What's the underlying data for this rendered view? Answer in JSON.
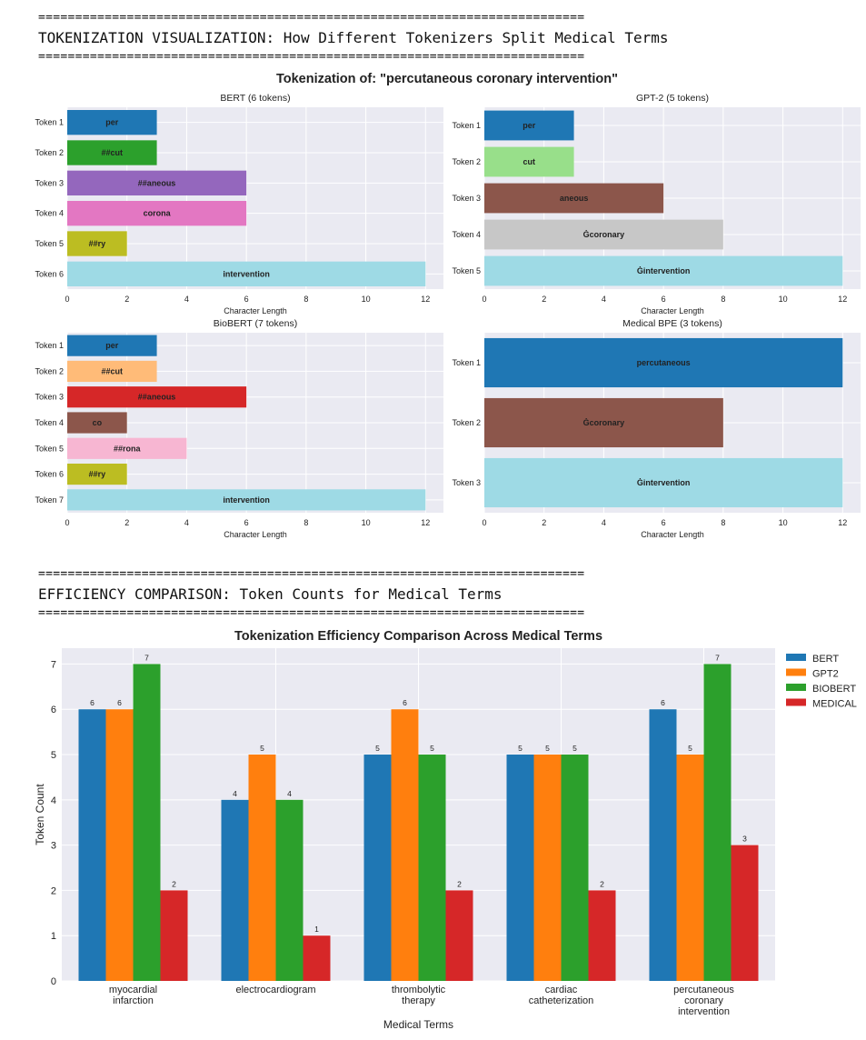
{
  "header1": {
    "sep_top": "==========================================================================",
    "title": "TOKENIZATION VISUALIZATION: How Different Tokenizers Split Medical Terms",
    "sep_bottom": "=========================================================================="
  },
  "header2": {
    "sep_top": "==========================================================================",
    "title": "EFFICIENCY COMPARISON: Token Counts for Medical Terms",
    "sep_bottom": "=========================================================================="
  },
  "figure1": {
    "suptitle": "Tokenization of: \"percutaneous coronary intervention\""
  },
  "chart_data": [
    {
      "type": "bar",
      "orientation": "horizontal",
      "title": "BERT (6 tokens)",
      "xlabel": "Character Length",
      "xlim": [
        0,
        12.6
      ],
      "xticks": [
        0,
        2,
        4,
        6,
        8,
        10,
        12
      ],
      "categories": [
        "Token 1",
        "Token 2",
        "Token 3",
        "Token 4",
        "Token 5",
        "Token 6"
      ],
      "labels": [
        "per",
        "##cut",
        "##aneous",
        "corona",
        "##ry",
        "intervention"
      ],
      "values": [
        3,
        3,
        6,
        6,
        2,
        12
      ],
      "colors": [
        "#1f77b4",
        "#2ca02c",
        "#9467bd",
        "#e377c2",
        "#bcbd22",
        "#9edae5"
      ]
    },
    {
      "type": "bar",
      "orientation": "horizontal",
      "title": "GPT-2 (5 tokens)",
      "xlabel": "Character Length",
      "xlim": [
        0,
        12.6
      ],
      "xticks": [
        0,
        2,
        4,
        6,
        8,
        10,
        12
      ],
      "categories": [
        "Token 1",
        "Token 2",
        "Token 3",
        "Token 4",
        "Token 5"
      ],
      "labels": [
        "per",
        "cut",
        "aneous",
        "Ġcoronary",
        "Ġintervention"
      ],
      "values": [
        3,
        3,
        6,
        8,
        12
      ],
      "colors": [
        "#1f77b4",
        "#98df8a",
        "#8c564b",
        "#c7c7c7",
        "#9edae5"
      ]
    },
    {
      "type": "bar",
      "orientation": "horizontal",
      "title": "BioBERT (7 tokens)",
      "xlabel": "Character Length",
      "xlim": [
        0,
        12.6
      ],
      "xticks": [
        0,
        2,
        4,
        6,
        8,
        10,
        12
      ],
      "categories": [
        "Token 1",
        "Token 2",
        "Token 3",
        "Token 4",
        "Token 5",
        "Token 6",
        "Token 7"
      ],
      "labels": [
        "per",
        "##cut",
        "##aneous",
        "co",
        "##rona",
        "##ry",
        "intervention"
      ],
      "values": [
        3,
        3,
        6,
        2,
        4,
        2,
        12
      ],
      "colors": [
        "#1f77b4",
        "#ffbb78",
        "#d62728",
        "#8c564b",
        "#f7b6d2",
        "#bcbd22",
        "#9edae5"
      ]
    },
    {
      "type": "bar",
      "orientation": "horizontal",
      "title": "Medical BPE (3 tokens)",
      "xlabel": "Character Length",
      "xlim": [
        0,
        12.6
      ],
      "xticks": [
        0,
        2,
        4,
        6,
        8,
        10,
        12
      ],
      "categories": [
        "Token 1",
        "Token 2",
        "Token 3"
      ],
      "labels": [
        "percutaneous",
        "Ġcoronary",
        "Ġintervention"
      ],
      "values": [
        12,
        8,
        12
      ],
      "colors": [
        "#1f77b4",
        "#8c564b",
        "#9edae5"
      ]
    },
    {
      "type": "bar",
      "title": "Tokenization Efficiency Comparison Across Medical Terms",
      "xlabel": "Medical Terms",
      "ylabel": "Token Count",
      "ylim": [
        0,
        7.35
      ],
      "yticks": [
        0,
        1,
        2,
        3,
        4,
        5,
        6,
        7
      ],
      "categories": [
        "myocardial\ninfarction",
        "electrocardiogram",
        "thrombolytic\ntherapy",
        "cardiac\ncatheterization",
        "percutaneous\ncoronary\nintervention"
      ],
      "legend_position": "outside-right",
      "series": [
        {
          "name": "BERT",
          "color": "#1f77b4",
          "values": [
            6,
            4,
            5,
            5,
            6
          ]
        },
        {
          "name": "GPT2",
          "color": "#ff7f0e",
          "values": [
            6,
            5,
            6,
            5,
            5
          ]
        },
        {
          "name": "BIOBERT",
          "color": "#2ca02c",
          "values": [
            7,
            4,
            5,
            5,
            7
          ]
        },
        {
          "name": "MEDICAL",
          "color": "#d62728",
          "values": [
            2,
            1,
            2,
            2,
            3
          ]
        }
      ]
    }
  ]
}
